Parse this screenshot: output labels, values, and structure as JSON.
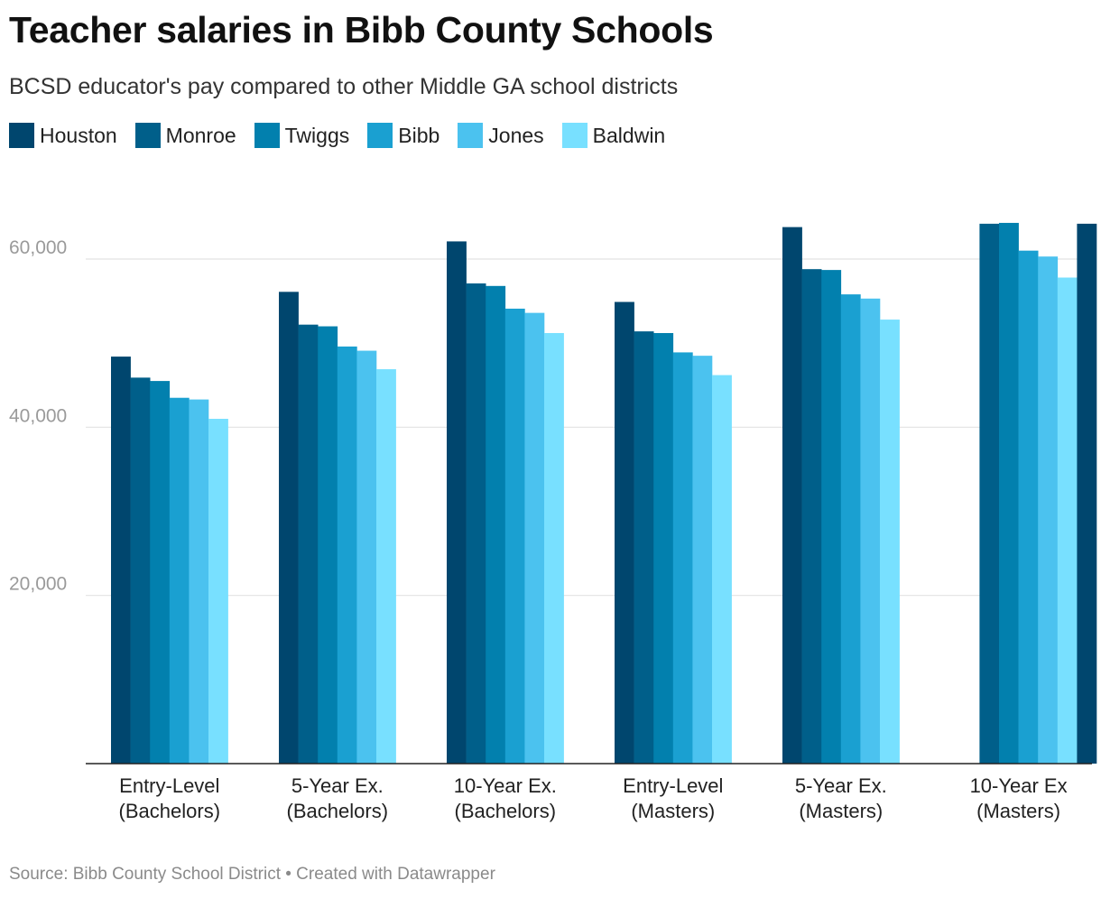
{
  "chart_data": {
    "type": "bar",
    "title": "Teacher salaries in Bibb County Schools",
    "subtitle": "BCSD educator's pay compared to other Middle GA school districts",
    "categories": [
      [
        "Entry-Level",
        "(Bachelors)"
      ],
      [
        "5-Year Ex.",
        "(Bachelors)"
      ],
      [
        "10-Year Ex.",
        "(Bachelors)"
      ],
      [
        "Entry-Level",
        "(Masters)"
      ],
      [
        "5-Year Ex.",
        "(Masters)"
      ],
      [
        "10-Year Ex",
        "(Masters)"
      ]
    ],
    "series": [
      {
        "name": "Houston",
        "color": "#00466e",
        "values": [
          48400,
          56100,
          62100,
          54900,
          63800,
          null
        ]
      },
      {
        "name": "Monroe",
        "color": "#005f8a",
        "values": [
          45900,
          52200,
          57100,
          51400,
          58800,
          64200
        ]
      },
      {
        "name": "Twiggs",
        "color": "#0280ae",
        "values": [
          45500,
          52000,
          56800,
          51200,
          58700,
          64300
        ]
      },
      {
        "name": "Bibb",
        "color": "#1aa0d1",
        "values": [
          43500,
          49600,
          54100,
          48900,
          55800,
          61000
        ]
      },
      {
        "name": "Jones",
        "color": "#4bc2ef",
        "values": [
          43300,
          49100,
          53600,
          48500,
          55300,
          60300
        ]
      },
      {
        "name": "Baldwin",
        "color": "#78e0ff",
        "values": [
          41000,
          46900,
          51200,
          46200,
          52800,
          57800
        ]
      }
    ],
    "extra_bar": {
      "category": 5,
      "value": 64200,
      "color": "#00466e"
    },
    "y_ticks": [
      20000,
      40000,
      60000
    ],
    "y_tick_labels": [
      "20,000",
      "40,000",
      "60,000"
    ],
    "ylim": [
      0,
      70000
    ],
    "xlabel": "",
    "ylabel": "",
    "legend_position": "top-left"
  },
  "footer": "Source: Bibb County School District • Created with Datawrapper"
}
